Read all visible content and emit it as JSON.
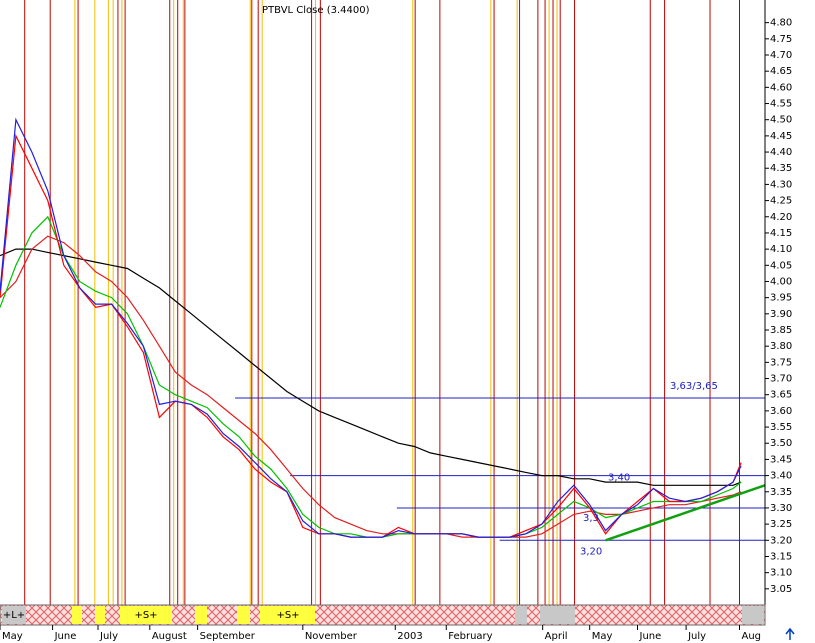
{
  "chart_data": {
    "type": "line",
    "title": "PTBVL Close (3.4400)",
    "xlim": [
      0,
      96
    ],
    "ylim": [
      3.0,
      4.87
    ],
    "yticks": [
      3.05,
      {
        "value": 3.1,
        "label": "3.10"
      },
      3.15,
      {
        "value": 3.2,
        "label": "3.20"
      },
      3.25,
      {
        "value": 3.3,
        "label": "3.30"
      },
      3.35,
      {
        "value": 3.4,
        "label": "3.40"
      },
      3.45,
      {
        "value": 3.5,
        "label": "3.50"
      },
      3.55,
      {
        "value": 3.6,
        "label": "3.60"
      },
      3.65,
      {
        "value": 3.7,
        "label": "3.70"
      },
      3.75,
      {
        "value": 3.8,
        "label": "3.80"
      },
      3.85,
      {
        "value": 3.9,
        "label": "3.90"
      },
      3.95,
      {
        "value": 4,
        "label": "4.00"
      },
      4.05,
      {
        "value": 4.1,
        "label": "4.10"
      },
      4.15,
      {
        "value": 4.2,
        "label": "4.20"
      },
      4.25,
      {
        "value": 4.3,
        "label": "4.30"
      },
      4.35,
      {
        "value": 4.4,
        "label": "4.40"
      },
      4.45,
      {
        "value": 4.5,
        "label": "4.50"
      },
      4.55,
      {
        "value": 4.6,
        "label": "4.60"
      },
      4.65,
      {
        "value": 4.7,
        "label": "4.70"
      },
      4.75,
      {
        "value": 4.8,
        "label": "4.80"
      }
    ],
    "xticks": [
      {
        "value": 0,
        "label": "May"
      },
      {
        "value": 6.6,
        "label": "June"
      },
      {
        "value": 12.3,
        "label": "July"
      },
      {
        "value": 18.8,
        "label": "August"
      },
      {
        "value": 24.8,
        "label": "September"
      },
      {
        "value": 38,
        "label": "November"
      },
      {
        "value": 49.6,
        "label": "2003"
      },
      {
        "value": 56,
        "label": "February"
      },
      {
        "value": 68.1,
        "label": "April"
      },
      {
        "value": 74,
        "label": "May"
      },
      {
        "value": 80,
        "label": "June"
      },
      {
        "value": 86.1,
        "label": "July"
      },
      {
        "value": 92.8,
        "label": "Aug"
      }
    ],
    "x": [
      0,
      2,
      4,
      6,
      8,
      10,
      12,
      14,
      16,
      18,
      20,
      22,
      24,
      26,
      28,
      30,
      32,
      34,
      36,
      38,
      40,
      42,
      44,
      46,
      48,
      50,
      52,
      54,
      56,
      58,
      60,
      62,
      64,
      66,
      68,
      70,
      72,
      74,
      76,
      78,
      80,
      82,
      84,
      86,
      88,
      90,
      92,
      93
    ],
    "series": [
      {
        "color": "#000000",
        "values": [
          4.08,
          4.1,
          4.1,
          4.09,
          4.08,
          4.07,
          4.06,
          4.05,
          4.04,
          4.01,
          3.98,
          3.94,
          3.9,
          3.86,
          3.82,
          3.78,
          3.74,
          3.7,
          3.66,
          3.63,
          3.6,
          3.58,
          3.56,
          3.54,
          3.52,
          3.5,
          3.49,
          3.47,
          3.46,
          3.45,
          3.44,
          3.43,
          3.42,
          3.41,
          3.4,
          3.4,
          3.39,
          3.39,
          3.38,
          3.38,
          3.38,
          3.37,
          3.37,
          3.37,
          3.37,
          3.37,
          3.37,
          3.38
        ]
      },
      {
        "color": "#e02020",
        "values": [
          3.95,
          4.0,
          4.1,
          4.14,
          4.12,
          4.08,
          4.03,
          4.0,
          3.95,
          3.88,
          3.8,
          3.72,
          3.68,
          3.65,
          3.61,
          3.57,
          3.53,
          3.48,
          3.42,
          3.36,
          3.31,
          3.27,
          3.25,
          3.23,
          3.22,
          3.22,
          3.22,
          3.22,
          3.22,
          3.21,
          3.21,
          3.21,
          3.21,
          3.21,
          3.22,
          3.25,
          3.28,
          3.29,
          3.28,
          3.28,
          3.29,
          3.3,
          3.31,
          3.31,
          3.32,
          3.33,
          3.34,
          3.35
        ]
      },
      {
        "color": "#00c000",
        "values": [
          3.92,
          4.05,
          4.15,
          4.2,
          4.08,
          4.0,
          3.97,
          3.95,
          3.9,
          3.8,
          3.68,
          3.65,
          3.63,
          3.61,
          3.56,
          3.52,
          3.46,
          3.42,
          3.36,
          3.28,
          3.24,
          3.22,
          3.22,
          3.21,
          3.21,
          3.22,
          3.22,
          3.22,
          3.22,
          3.22,
          3.21,
          3.21,
          3.21,
          3.22,
          3.24,
          3.28,
          3.32,
          3.3,
          3.27,
          3.28,
          3.3,
          3.32,
          3.32,
          3.32,
          3.32,
          3.34,
          3.36,
          3.38
        ]
      },
      {
        "color": "#ff0000",
        "values": [
          3.95,
          4.45,
          4.35,
          4.25,
          4.05,
          3.98,
          3.92,
          3.93,
          3.86,
          3.78,
          3.58,
          3.63,
          3.62,
          3.58,
          3.52,
          3.48,
          3.42,
          3.38,
          3.35,
          3.24,
          3.22,
          3.22,
          3.21,
          3.21,
          3.21,
          3.24,
          3.22,
          3.22,
          3.22,
          3.22,
          3.21,
          3.21,
          3.21,
          3.23,
          3.25,
          3.3,
          3.36,
          3.3,
          3.22,
          3.28,
          3.32,
          3.36,
          3.32,
          3.32,
          3.33,
          3.35,
          3.38,
          3.44
        ]
      },
      {
        "color": "#2020e0",
        "values": [
          3.97,
          4.5,
          4.4,
          4.28,
          4.08,
          3.98,
          3.93,
          3.93,
          3.87,
          3.8,
          3.62,
          3.63,
          3.62,
          3.59,
          3.53,
          3.49,
          3.44,
          3.39,
          3.35,
          3.26,
          3.22,
          3.22,
          3.21,
          3.21,
          3.21,
          3.23,
          3.22,
          3.22,
          3.22,
          3.22,
          3.21,
          3.21,
          3.21,
          3.22,
          3.25,
          3.32,
          3.37,
          3.31,
          3.23,
          3.28,
          3.31,
          3.36,
          3.33,
          3.32,
          3.33,
          3.35,
          3.38,
          3.43
        ]
      }
    ],
    "levels": [
      {
        "value": 3.64,
        "label": "3,63/3,65",
        "x_start": 29.5
      },
      {
        "value": 3.4,
        "label": "3,40",
        "x_start": 36.4
      },
      {
        "value": 3.3,
        "label": "3,3",
        "x_start": 49.8
      },
      {
        "value": 3.2,
        "label": "3,20",
        "x_start": 62.7
      }
    ],
    "trendline": {
      "color": "#10a010",
      "x": [
        76,
        96
      ],
      "values": [
        3.2,
        3.37
      ]
    },
    "red_markers": [
      3.1,
      6.3,
      9.8,
      14.8,
      15.7,
      21.3,
      22.3,
      23.2,
      31.6,
      32.4,
      39.1,
      40.2,
      52.1,
      55.2,
      62,
      65.2,
      67.5,
      68.4,
      69.4,
      70.3,
      72.1,
      81.6,
      83.4,
      89.1,
      92.8
    ],
    "yellow_markers": [
      9.4,
      11.9,
      13.6,
      14.2,
      15.3,
      21.8,
      23,
      31.4,
      32.9,
      39.6,
      51.8,
      61.6,
      64.9,
      68.9,
      69.9
    ],
    "strip_labels": [
      "+L+",
      "+S+",
      "+S+"
    ]
  }
}
